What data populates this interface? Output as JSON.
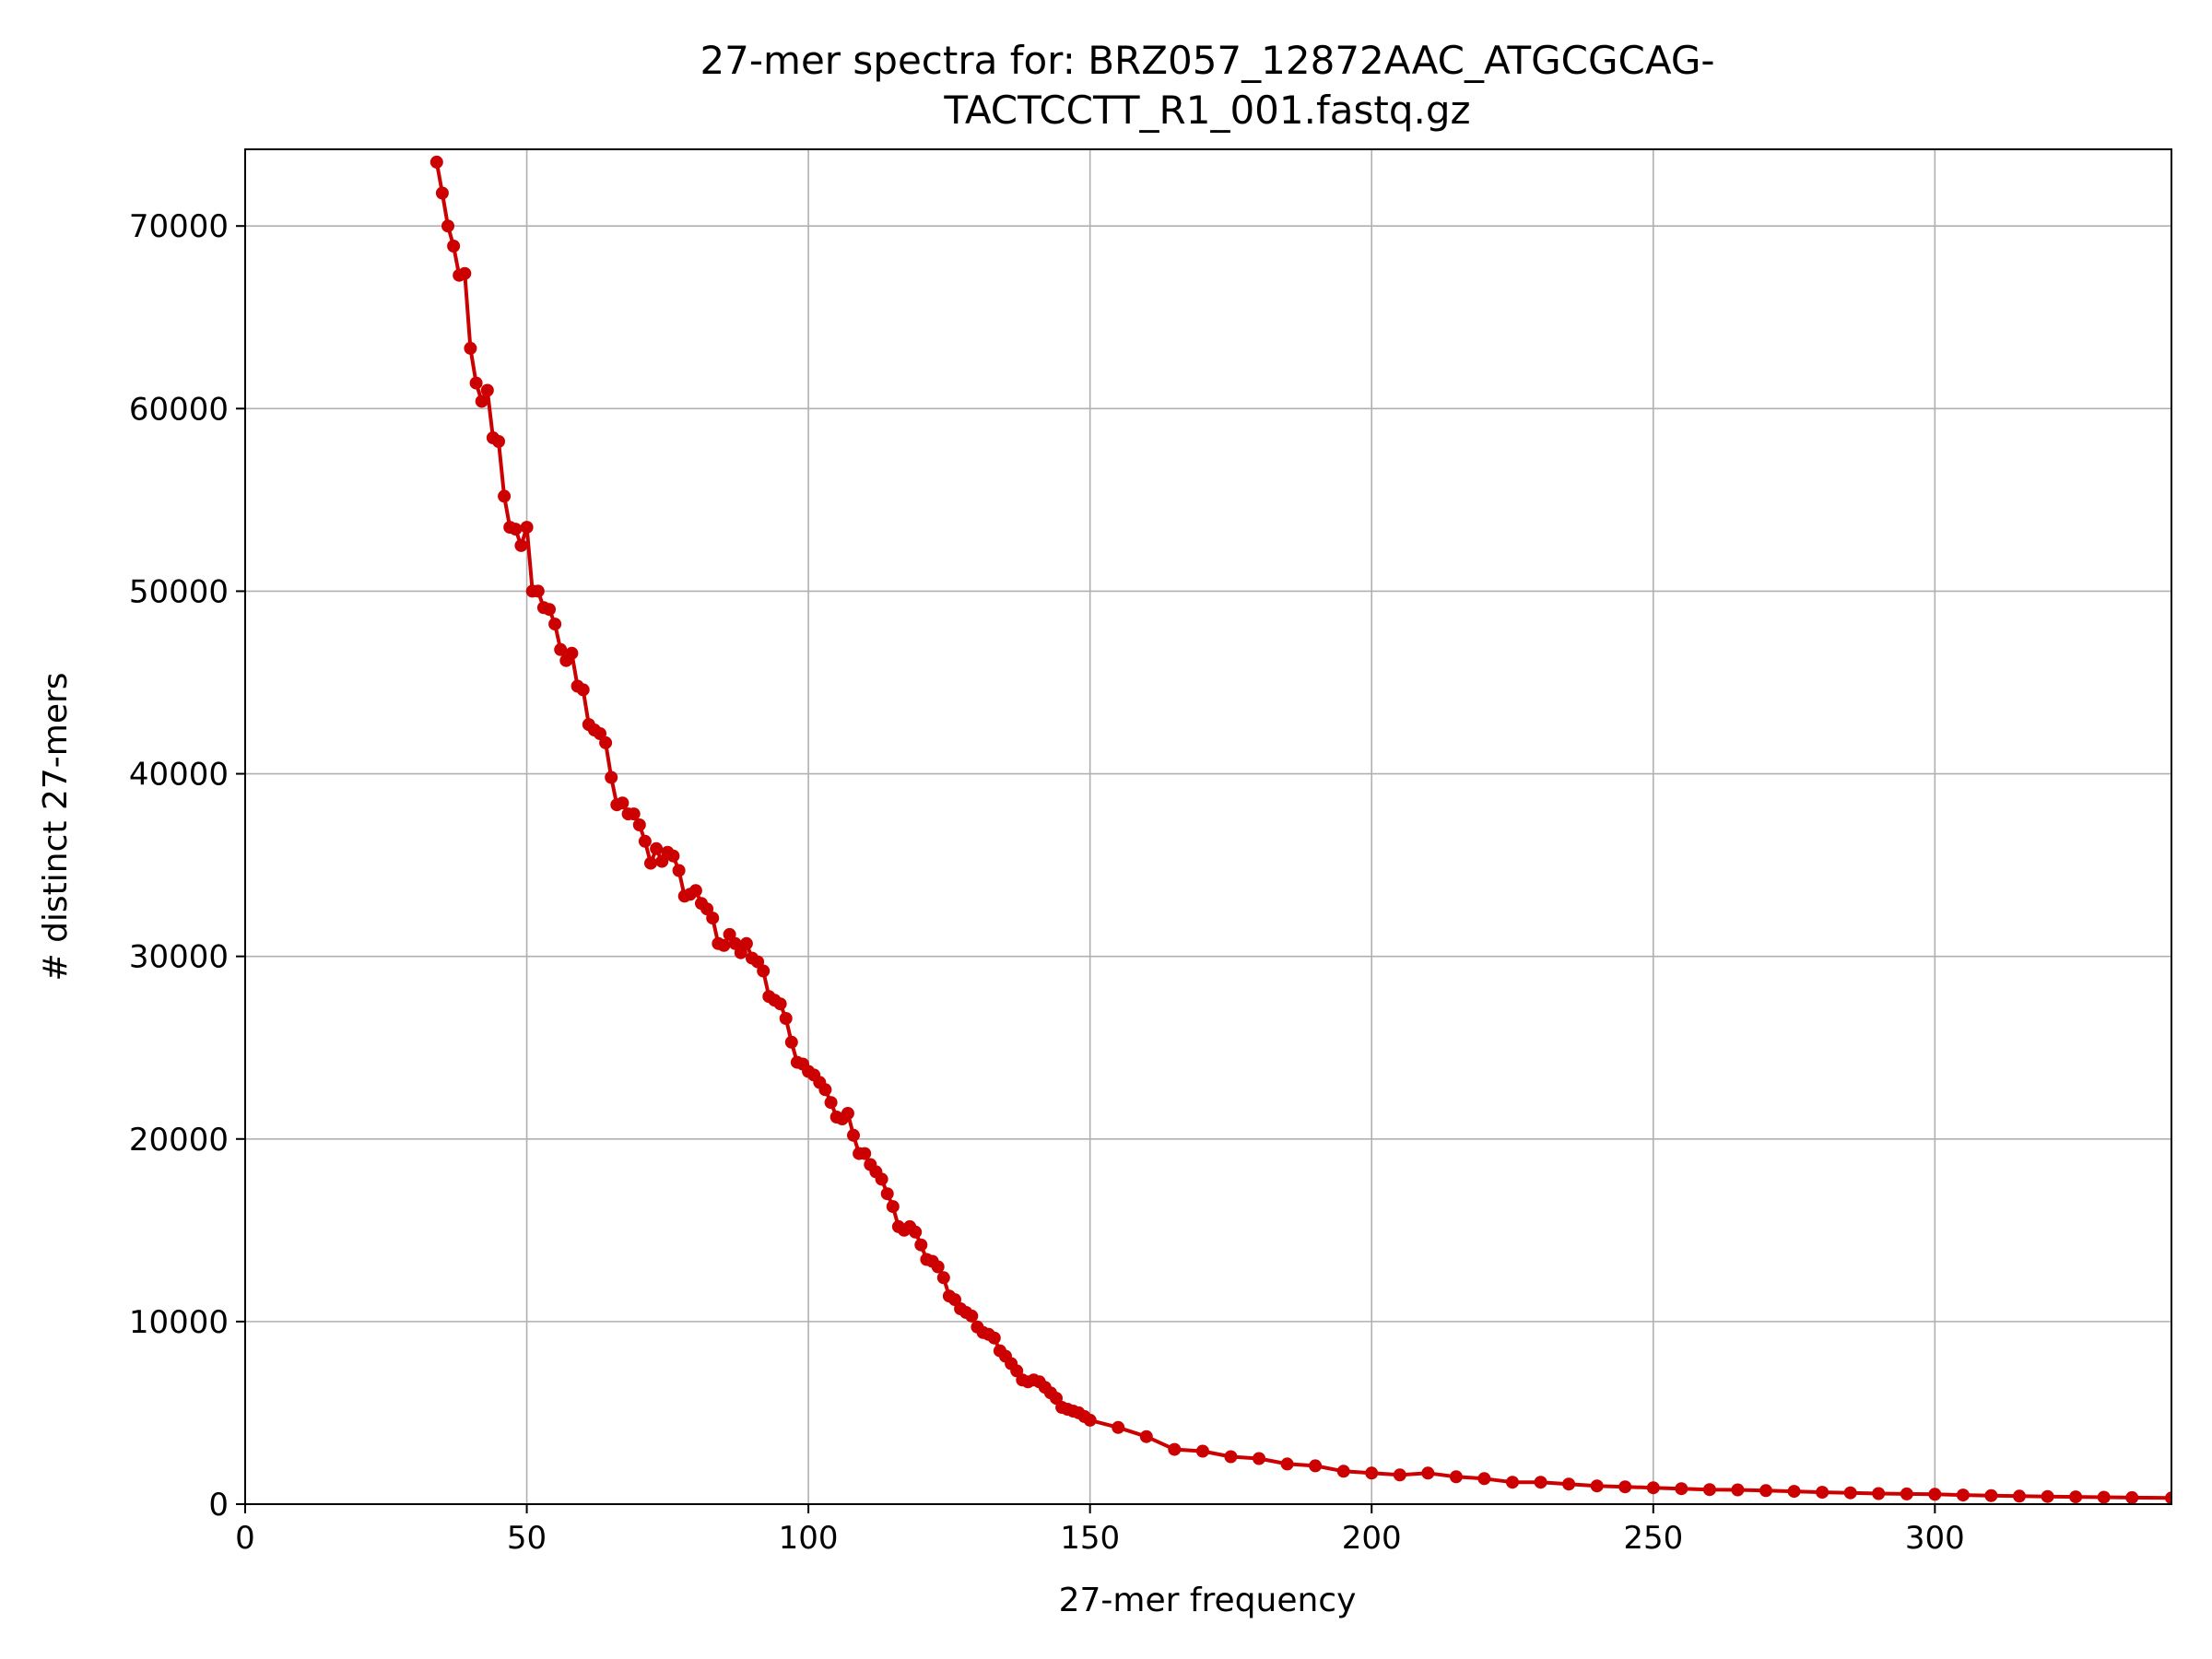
{
  "chart_data": {
    "type": "line",
    "title_lines": [
      "27-mer spectra for: BRZ057_12872AAC_ATGCGCAG-",
      "TACTCCTT_R1_001.fastq.gz"
    ],
    "xlabel": "27-mer frequency",
    "ylabel": "# distinct 27-mers",
    "xlim": [
      0,
      342
    ],
    "ylim": [
      0,
      74200
    ],
    "xticks": [
      0,
      50,
      100,
      150,
      200,
      250,
      300
    ],
    "yticks": [
      0,
      10000,
      20000,
      30000,
      40000,
      50000,
      60000,
      70000
    ],
    "grid": true,
    "legend": "none",
    "series": [
      {
        "color": "#cc0000",
        "marker": "circle",
        "x": [
          34,
          35,
          36,
          37,
          38,
          39,
          40,
          41,
          42,
          43,
          44,
          45,
          46,
          47,
          48,
          49,
          50,
          51,
          52,
          53,
          54,
          55,
          56,
          57,
          58,
          59,
          60,
          61,
          62,
          63,
          64,
          65,
          66,
          67,
          68,
          69,
          70,
          71,
          72,
          73,
          74,
          75,
          76,
          77,
          78,
          79,
          80,
          81,
          82,
          83,
          84,
          85,
          86,
          87,
          88,
          89,
          90,
          91,
          92,
          93,
          94,
          95,
          96,
          97,
          98,
          99,
          100,
          101,
          102,
          103,
          104,
          105,
          106,
          107,
          108,
          109,
          110,
          111,
          112,
          113,
          114,
          115,
          116,
          117,
          118,
          119,
          120,
          121,
          122,
          123,
          124,
          125,
          126,
          127,
          128,
          129,
          130,
          131,
          132,
          133,
          134,
          135,
          136,
          137,
          138,
          139,
          140,
          141,
          142,
          143,
          144,
          145,
          146,
          147,
          148,
          149,
          150,
          155,
          160,
          165,
          170,
          175,
          180,
          185,
          190,
          195,
          200,
          205,
          210,
          215,
          220,
          225,
          230,
          235,
          240,
          245,
          250,
          255,
          260,
          265,
          270,
          275,
          280,
          285,
          290,
          295,
          300,
          305,
          310,
          315,
          320,
          325,
          330,
          335,
          342
        ],
        "y": [
          73500,
          71800,
          70000,
          68900,
          67300,
          67400,
          63300,
          61400,
          60400,
          61000,
          58400,
          58200,
          55200,
          53500,
          53400,
          52500,
          53500,
          50000,
          50000,
          49100,
          49000,
          48200,
          46800,
          46200,
          46600,
          44800,
          44600,
          42700,
          42400,
          42200,
          41700,
          39800,
          38300,
          38400,
          37800,
          37800,
          37200,
          36300,
          35100,
          35900,
          35200,
          35700,
          35500,
          34700,
          33300,
          33400,
          33600,
          32900,
          32600,
          32100,
          30700,
          30600,
          31200,
          30700,
          30200,
          30700,
          29900,
          29700,
          29200,
          27800,
          27600,
          27400,
          26600,
          25300,
          24200,
          24100,
          23700,
          23500,
          23100,
          22700,
          22000,
          21200,
          21100,
          21400,
          20200,
          19200,
          19200,
          18600,
          18200,
          17800,
          17000,
          16300,
          15200,
          15000,
          15200,
          14900,
          14200,
          13400,
          13300,
          13000,
          12400,
          11400,
          11200,
          10700,
          10500,
          10300,
          9700,
          9400,
          9300,
          9100,
          8400,
          8100,
          7700,
          7300,
          6800,
          6700,
          6800,
          6700,
          6400,
          6100,
          5800,
          5300,
          5200,
          5100,
          5000,
          4800,
          4600,
          4200,
          3700,
          3000,
          2900,
          2600,
          2500,
          2200,
          2100,
          1800,
          1700,
          1600,
          1700,
          1500,
          1400,
          1200,
          1200,
          1100,
          1000,
          950,
          900,
          850,
          800,
          780,
          740,
          700,
          650,
          620,
          580,
          560,
          540,
          500,
          470,
          440,
          420,
          400,
          380,
          360,
          340
        ]
      }
    ]
  }
}
